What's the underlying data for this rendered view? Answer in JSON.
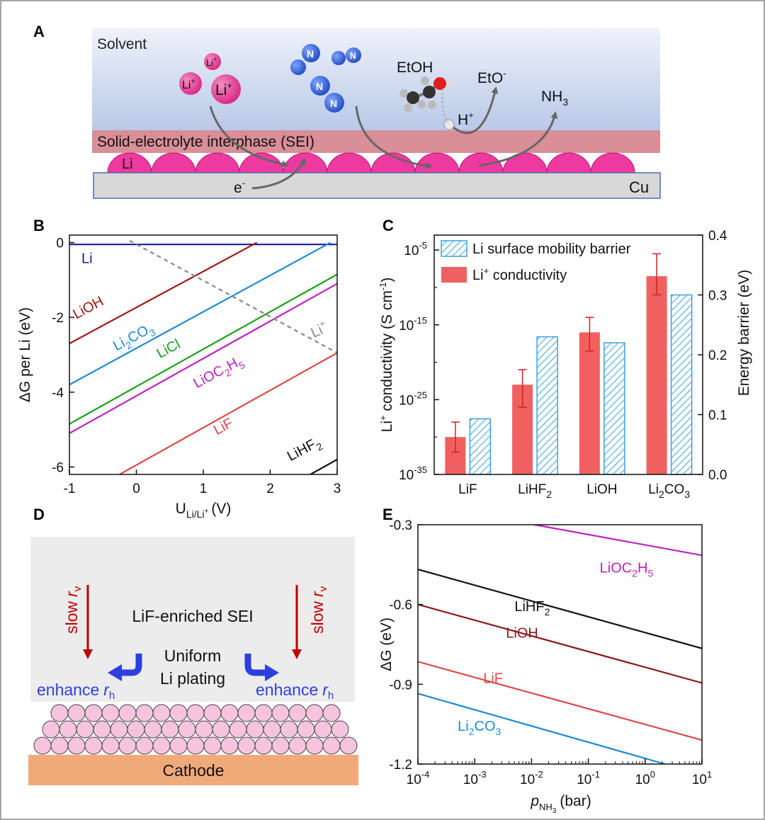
{
  "panel_letters": {
    "a": "A",
    "b": "B",
    "c": "C",
    "d": "D",
    "e": "E"
  },
  "panel_a": {
    "solvent": "Solvent",
    "sei": "Solid-electrolyte interphase (SEI)",
    "li": "Li",
    "cu": "Cu",
    "electron": "e",
    "electron_sup": "-",
    "li_ion": "Li",
    "li_ion_sup": "+",
    "n_label": "N",
    "etoh": "EtOH",
    "eto": "EtO",
    "eto_sup": "-",
    "h": "H",
    "h_sup": "+",
    "nh": "NH",
    "nh_sub": "3"
  },
  "panel_d": {
    "sei_label": "LiF-enriched SEI",
    "uniform_1": "Uniform",
    "uniform_2": "Li plating",
    "slow": "slow",
    "r": "r",
    "r_v_sub": "v",
    "r_h_sub": "h",
    "enhance": "enhance",
    "cathode": "Cathode"
  },
  "colors": {
    "magenta": "#e8409a",
    "sei": "#d98e98",
    "blue_molecule": "#2a5fd6",
    "cu": "#d8d8d8",
    "dark_red": "#c00000",
    "arrow_blue": "#2e3fe0",
    "sphere_fill": "#f7c4df",
    "cathode": "#f0aa7a",
    "bar_red": "#f06060",
    "hatch_blue": "#3aa0e0"
  },
  "chart_data": [
    {
      "panel": "B",
      "type": "line",
      "xlabel": "U",
      "xlabel_sub": "Li/Li",
      "xlabel_sub_sup": "+",
      "xlabel_unit": "(V)",
      "ylabel": "ΔG per Li (eV)",
      "xlim": [
        -1,
        3
      ],
      "ylim": [
        -6.2,
        0.2
      ],
      "xticks": [
        -1,
        0,
        1,
        2,
        3
      ],
      "yticks": [
        0,
        -2,
        -4,
        -6
      ],
      "series": [
        {
          "name": "Li",
          "color": "#1a1aa0",
          "x": [
            -1,
            3
          ],
          "y": [
            -0.05,
            -0.05
          ],
          "label_pos": [
            -0.82,
            -0.55
          ]
        },
        {
          "name": "LiOH",
          "color": "#a01818",
          "x": [
            -1,
            1.8
          ],
          "y": [
            -2.7,
            0
          ],
          "label_pos": [
            -0.9,
            -2.05
          ],
          "rot": -28
        },
        {
          "name": "Li2CO3",
          "display": "Li",
          "sub": "2",
          "tail": "CO",
          "sub2": "3",
          "color": "#1f8ad8",
          "x": [
            -1,
            2.9
          ],
          "y": [
            -3.8,
            0
          ],
          "label_pos": [
            -0.3,
            -2.9
          ],
          "rot": -28
        },
        {
          "name": "LiCl",
          "color": "#1aa01a",
          "x": [
            -1,
            3
          ],
          "y": [
            -4.85,
            -0.85
          ],
          "label_pos": [
            0.35,
            -3.1
          ],
          "rot": -28
        },
        {
          "name": "LiOC2H5",
          "display": "LiOC",
          "sub": "2",
          "tail": "H",
          "sub2": "5",
          "color": "#c020c0",
          "x": [
            -1,
            3
          ],
          "y": [
            -5.1,
            -1.1
          ],
          "label_pos": [
            0.9,
            -3.9
          ],
          "rot": -28
        },
        {
          "name": "LiF",
          "color": "#e04848",
          "x": [
            -0.25,
            3
          ],
          "y": [
            -6.2,
            -2.95
          ],
          "label_pos": [
            1.2,
            -5.15
          ],
          "rot": -28
        },
        {
          "name": "LiHF2",
          "display": "LiHF",
          "sub": "2",
          "color": "#111111",
          "x": [
            2.6,
            3
          ],
          "y": [
            -6.2,
            -5.8
          ],
          "label_pos": [
            2.3,
            -5.85
          ],
          "rot": -28
        },
        {
          "name": "Li+",
          "display": "Li",
          "sup": "+",
          "color": "#888888",
          "dashed": true,
          "x": [
            -0.1,
            3
          ],
          "y": [
            0.05,
            -2.95
          ],
          "label_pos": [
            2.65,
            -2.55
          ],
          "rot": -25
        }
      ]
    },
    {
      "panel": "C",
      "type": "bar",
      "categories": [
        "LiF",
        "LiHF2",
        "LiOH",
        "Li2CO3"
      ],
      "category_display": [
        {
          "main": "LiF",
          "sub": "",
          "tail": ""
        },
        {
          "main": "LiHF",
          "sub": "2",
          "tail": ""
        },
        {
          "main": "LiOH",
          "sub": "",
          "tail": ""
        },
        {
          "main": "Li",
          "sub": "2",
          "tail": "CO",
          "sub2": "3"
        }
      ],
      "ylabel_left": "Li",
      "ylabel_left_sup": "+",
      "ylabel_left_rest": " conductivity (S cm",
      "ylabel_left_exp": "-1",
      "ylabel_left_close": ")",
      "ylabel_right": "Energy barrier (eV)",
      "ylim_left_log10": [
        -35,
        -3
      ],
      "yticks_left": [
        "10^-5",
        "10^-15",
        "10^-25",
        "10^-35"
      ],
      "ylim_right": [
        0,
        0.4
      ],
      "yticks_right": [
        "0.0",
        "0.1",
        "0.2",
        "0.3",
        "0.4"
      ],
      "legend": [
        {
          "label": "Li surface mobility barrier",
          "style": "hatch"
        },
        {
          "label": "Li",
          "sup": "+",
          "rest": " conductivity",
          "style": "solid"
        }
      ],
      "series": [
        {
          "name": "Li+ conductivity",
          "log10_values": [
            -30,
            -23,
            -16,
            -8.5
          ],
          "log10_err": [
            [
              -32,
              -28
            ],
            [
              -26,
              -21
            ],
            [
              -18.5,
              -14
            ],
            [
              -11,
              -5.5
            ]
          ]
        },
        {
          "name": "Li surface mobility barrier",
          "values": [
            0.093,
            0.23,
            0.22,
            0.3
          ]
        }
      ]
    },
    {
      "panel": "E",
      "type": "line",
      "xlabel": "p",
      "xlabel_sub": "NH",
      "xlabel_sub2": "3",
      "xlabel_unit": "(bar)",
      "ylabel": "ΔG (eV)",
      "xscale": "log",
      "xlim_log10": [
        -4,
        1
      ],
      "xticks": [
        "10^-4",
        "10^-3",
        "10^-2",
        "10^-1",
        "10^0",
        "10^1"
      ],
      "ylim": [
        -1.2,
        -0.3
      ],
      "yticks": [
        "-0.3",
        "-0.6",
        "-0.9",
        "-1.2"
      ],
      "series": [
        {
          "name": "LiOC2H5",
          "display": "LiOC",
          "sub": "2",
          "tail": "H",
          "sub2": "5",
          "color": "#c020c0",
          "xlog": [
            -1.95,
            1
          ],
          "y": [
            -0.3,
            -0.415
          ],
          "label_pos": [
            -0.8,
            -0.48
          ]
        },
        {
          "name": "LiHF2",
          "display": "LiHF",
          "sub": "2",
          "color": "#111111",
          "xlog": [
            -4,
            1
          ],
          "y": [
            -0.468,
            -0.765
          ],
          "label_pos": [
            -2.3,
            -0.625
          ]
        },
        {
          "name": "LiOH",
          "color": "#8b1818",
          "xlog": [
            -4,
            1
          ],
          "y": [
            -0.6,
            -0.895
          ],
          "label_pos": [
            -2.45,
            -0.725
          ]
        },
        {
          "name": "LiF",
          "color": "#e04848",
          "xlog": [
            -4,
            1
          ],
          "y": [
            -0.815,
            -1.11
          ],
          "label_pos": [
            -2.85,
            -0.895
          ]
        },
        {
          "name": "Li2CO3",
          "display": "Li",
          "sub": "2",
          "tail": "CO",
          "sub2": "3",
          "color": "#1f8ad8",
          "xlog": [
            -4,
            0.35
          ],
          "y": [
            -0.935,
            -1.2
          ],
          "label_pos": [
            -3.3,
            -1.075
          ]
        }
      ]
    }
  ]
}
